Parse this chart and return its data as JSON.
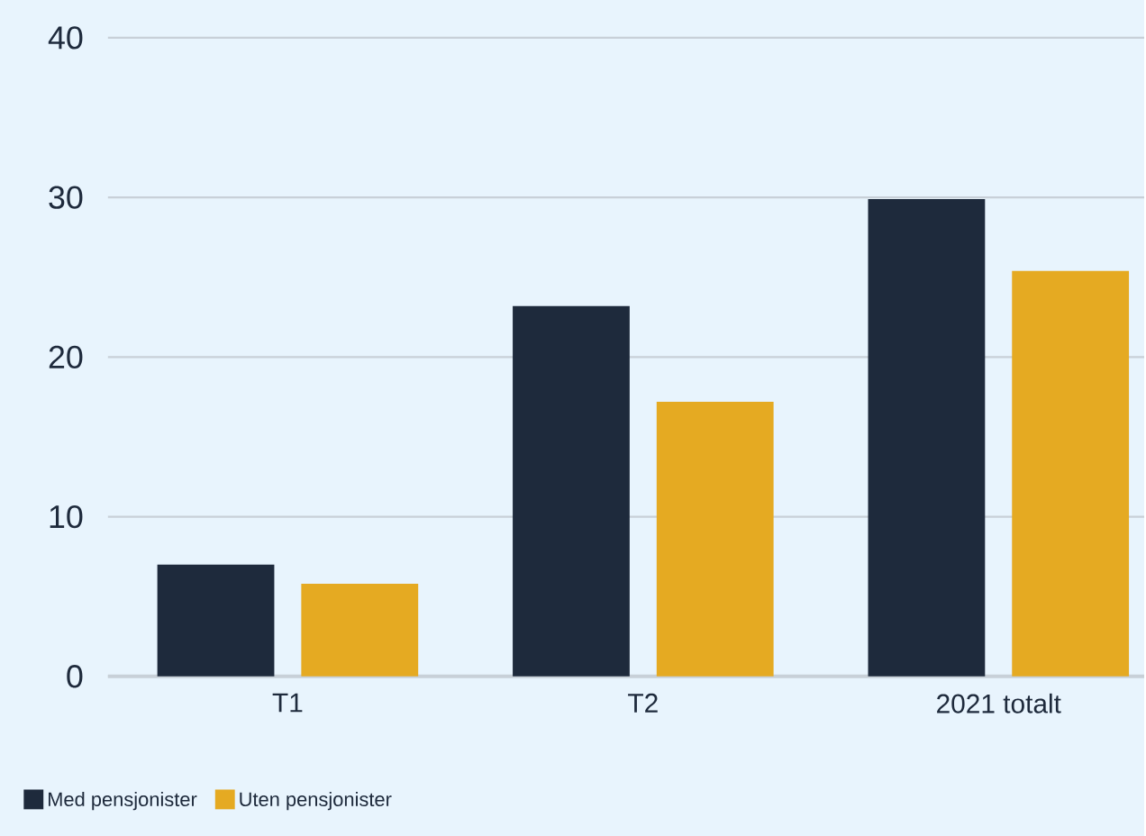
{
  "chart_data": {
    "type": "bar",
    "categories": [
      "T1",
      "T2",
      "2021 totalt"
    ],
    "series": [
      {
        "name": "Med pensjonister",
        "color": "#1e2a3c",
        "values": [
          7.0,
          23.2,
          29.9
        ]
      },
      {
        "name": "Uten pensjonister",
        "color": "#e5aa22",
        "values": [
          5.8,
          17.2,
          25.4
        ]
      }
    ],
    "ylim": [
      0,
      40
    ],
    "yticks": [
      0,
      10,
      20,
      30,
      40
    ],
    "grid": "y",
    "legend": "bottom left"
  }
}
